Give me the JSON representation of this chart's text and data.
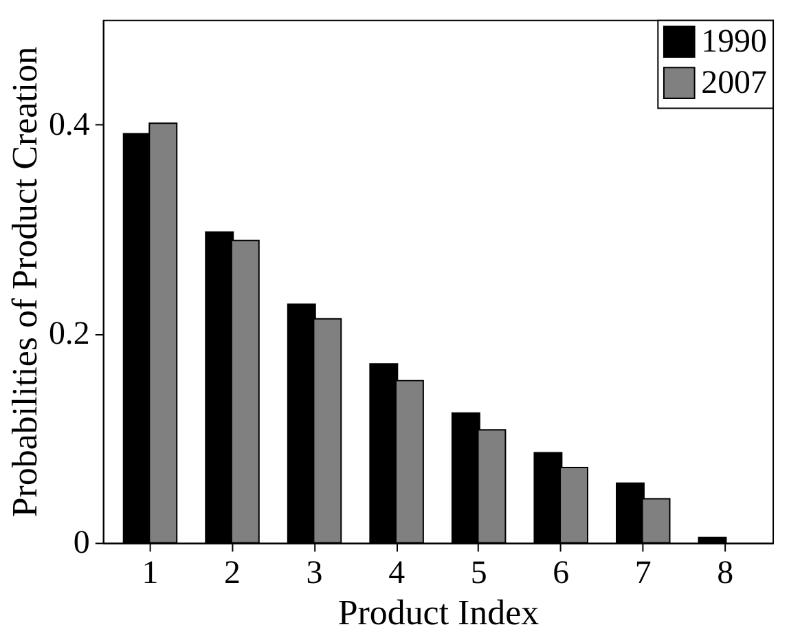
{
  "chart_data": {
    "type": "bar",
    "xlabel": "Product Index",
    "ylabel": "Probabilities of Product Creation",
    "categories": [
      "1",
      "2",
      "3",
      "4",
      "5",
      "6",
      "7",
      "8"
    ],
    "series": [
      {
        "name": "1990",
        "color": "#000000",
        "values": [
          0.391,
          0.297,
          0.228,
          0.171,
          0.124,
          0.086,
          0.057,
          0.005
        ]
      },
      {
        "name": "2007",
        "color": "#808080",
        "values": [
          0.401,
          0.289,
          0.214,
          0.155,
          0.108,
          0.072,
          0.042,
          null
        ]
      }
    ],
    "ylim": [
      0,
      0.5
    ],
    "yticks": [
      0,
      0.2,
      0.4
    ],
    "grid": false,
    "legend": "top right"
  }
}
